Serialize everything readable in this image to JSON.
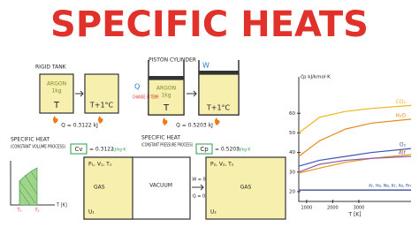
{
  "title": "SPECIFIC HEATS",
  "rigid_tank": {
    "label": "RIGID TANK",
    "gas": "ARGON",
    "mass": "1kg",
    "temp1": "T",
    "temp2": "T+1°C",
    "heat": "Q = 0.3122 kJ"
  },
  "piston_cylinder": {
    "label": "PISTON CYLINDER",
    "work": "W",
    "heat_in": "Q",
    "note": "CHANGE IN TEMP.",
    "gas": "ARGON",
    "mass": "1kg",
    "temp1": "T",
    "temp2": "T+1°C",
    "heat": "Q = 0.5203 kJ"
  },
  "cv": {
    "heading": "SPECIFIC HEAT",
    "process": "(CONSTANT VOLUME PROCESS)",
    "symbol": "Cv",
    "value": "= 0.3122",
    "unit": "kJ/kg·K"
  },
  "cp": {
    "heading": "SPECIFIC HEAT",
    "process": "(CONSTANT PRESSURE PROCESS)",
    "symbol": "Cp",
    "value": "= 0.5203",
    "unit": "kJ/kg·K"
  },
  "free_expansion": {
    "axis": "T [K]",
    "t1": "T₁",
    "t2": "T₂",
    "props1": "P₁, V₁, T₁",
    "gas": "GAS",
    "energy1": "U₁",
    "vacuum": "VACUUM",
    "work": "W = 0",
    "heat": "Q = 0",
    "props2": "P₂, V₂, T₂",
    "energy2": "U₂"
  },
  "chart_data": {
    "type": "line",
    "y_label": "c̄p  kJ/kmol·K",
    "x_label": "T [K]",
    "x": [
      700,
      1500,
      2500,
      3500,
      5000
    ],
    "xlim": [
      700,
      5000
    ],
    "ylim": [
      15,
      75
    ],
    "xticks": [
      1000,
      2000,
      3000
    ],
    "yticks": [
      20,
      30,
      40,
      50,
      60
    ],
    "series": [
      {
        "name": "CO₂",
        "color": "#f2b51a",
        "values": [
          50,
          58,
          61,
          62.5,
          64
        ]
      },
      {
        "name": "H₂O",
        "color": "#e8891c",
        "values": [
          38,
          46,
          52,
          55,
          57
        ]
      },
      {
        "name": "O₂",
        "color": "#3a55b4",
        "values": [
          33,
          36,
          38,
          40,
          42
        ]
      },
      {
        "name": "H₂",
        "color": "#e39a1d",
        "values": [
          29.5,
          32,
          35,
          37,
          39
        ]
      },
      {
        "name": "Air",
        "color": "#8c5aa8",
        "values": [
          30,
          34,
          36,
          37,
          38
        ]
      },
      {
        "name": "Ar, He, Ne, Kr, Xe, Rn",
        "color": "#2a3f8a",
        "values": [
          20.8,
          20.8,
          20.8,
          20.8,
          20.8
        ]
      }
    ]
  }
}
